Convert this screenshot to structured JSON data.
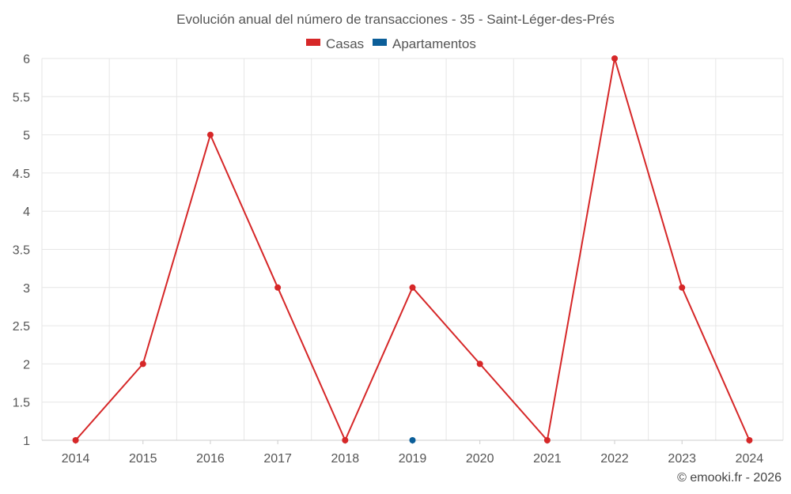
{
  "chart_data": {
    "type": "line",
    "title": "Evolución anual del número de transacciones - 35 - Saint-Léger-des-Prés",
    "categories": [
      "2014",
      "2015",
      "2016",
      "2017",
      "2018",
      "2019",
      "2020",
      "2021",
      "2022",
      "2023",
      "2024"
    ],
    "series": [
      {
        "name": "Casas",
        "color": "#d62728",
        "values": [
          1,
          2,
          5,
          3,
          1,
          3,
          2,
          1,
          6,
          3,
          1
        ]
      },
      {
        "name": "Apartamentos",
        "color": "#0b5e99",
        "values": [
          null,
          null,
          null,
          null,
          null,
          1,
          null,
          null,
          null,
          null,
          null
        ]
      }
    ],
    "yticks": [
      "1",
      "1.5",
      "2",
      "2.5",
      "3",
      "3.5",
      "4",
      "4.5",
      "5",
      "5.5",
      "6"
    ],
    "ylim": [
      1,
      6
    ],
    "grid": true,
    "legend_position": "top-center",
    "xlabel": "",
    "ylabel": ""
  },
  "credit": "© emooki.fr - 2026"
}
